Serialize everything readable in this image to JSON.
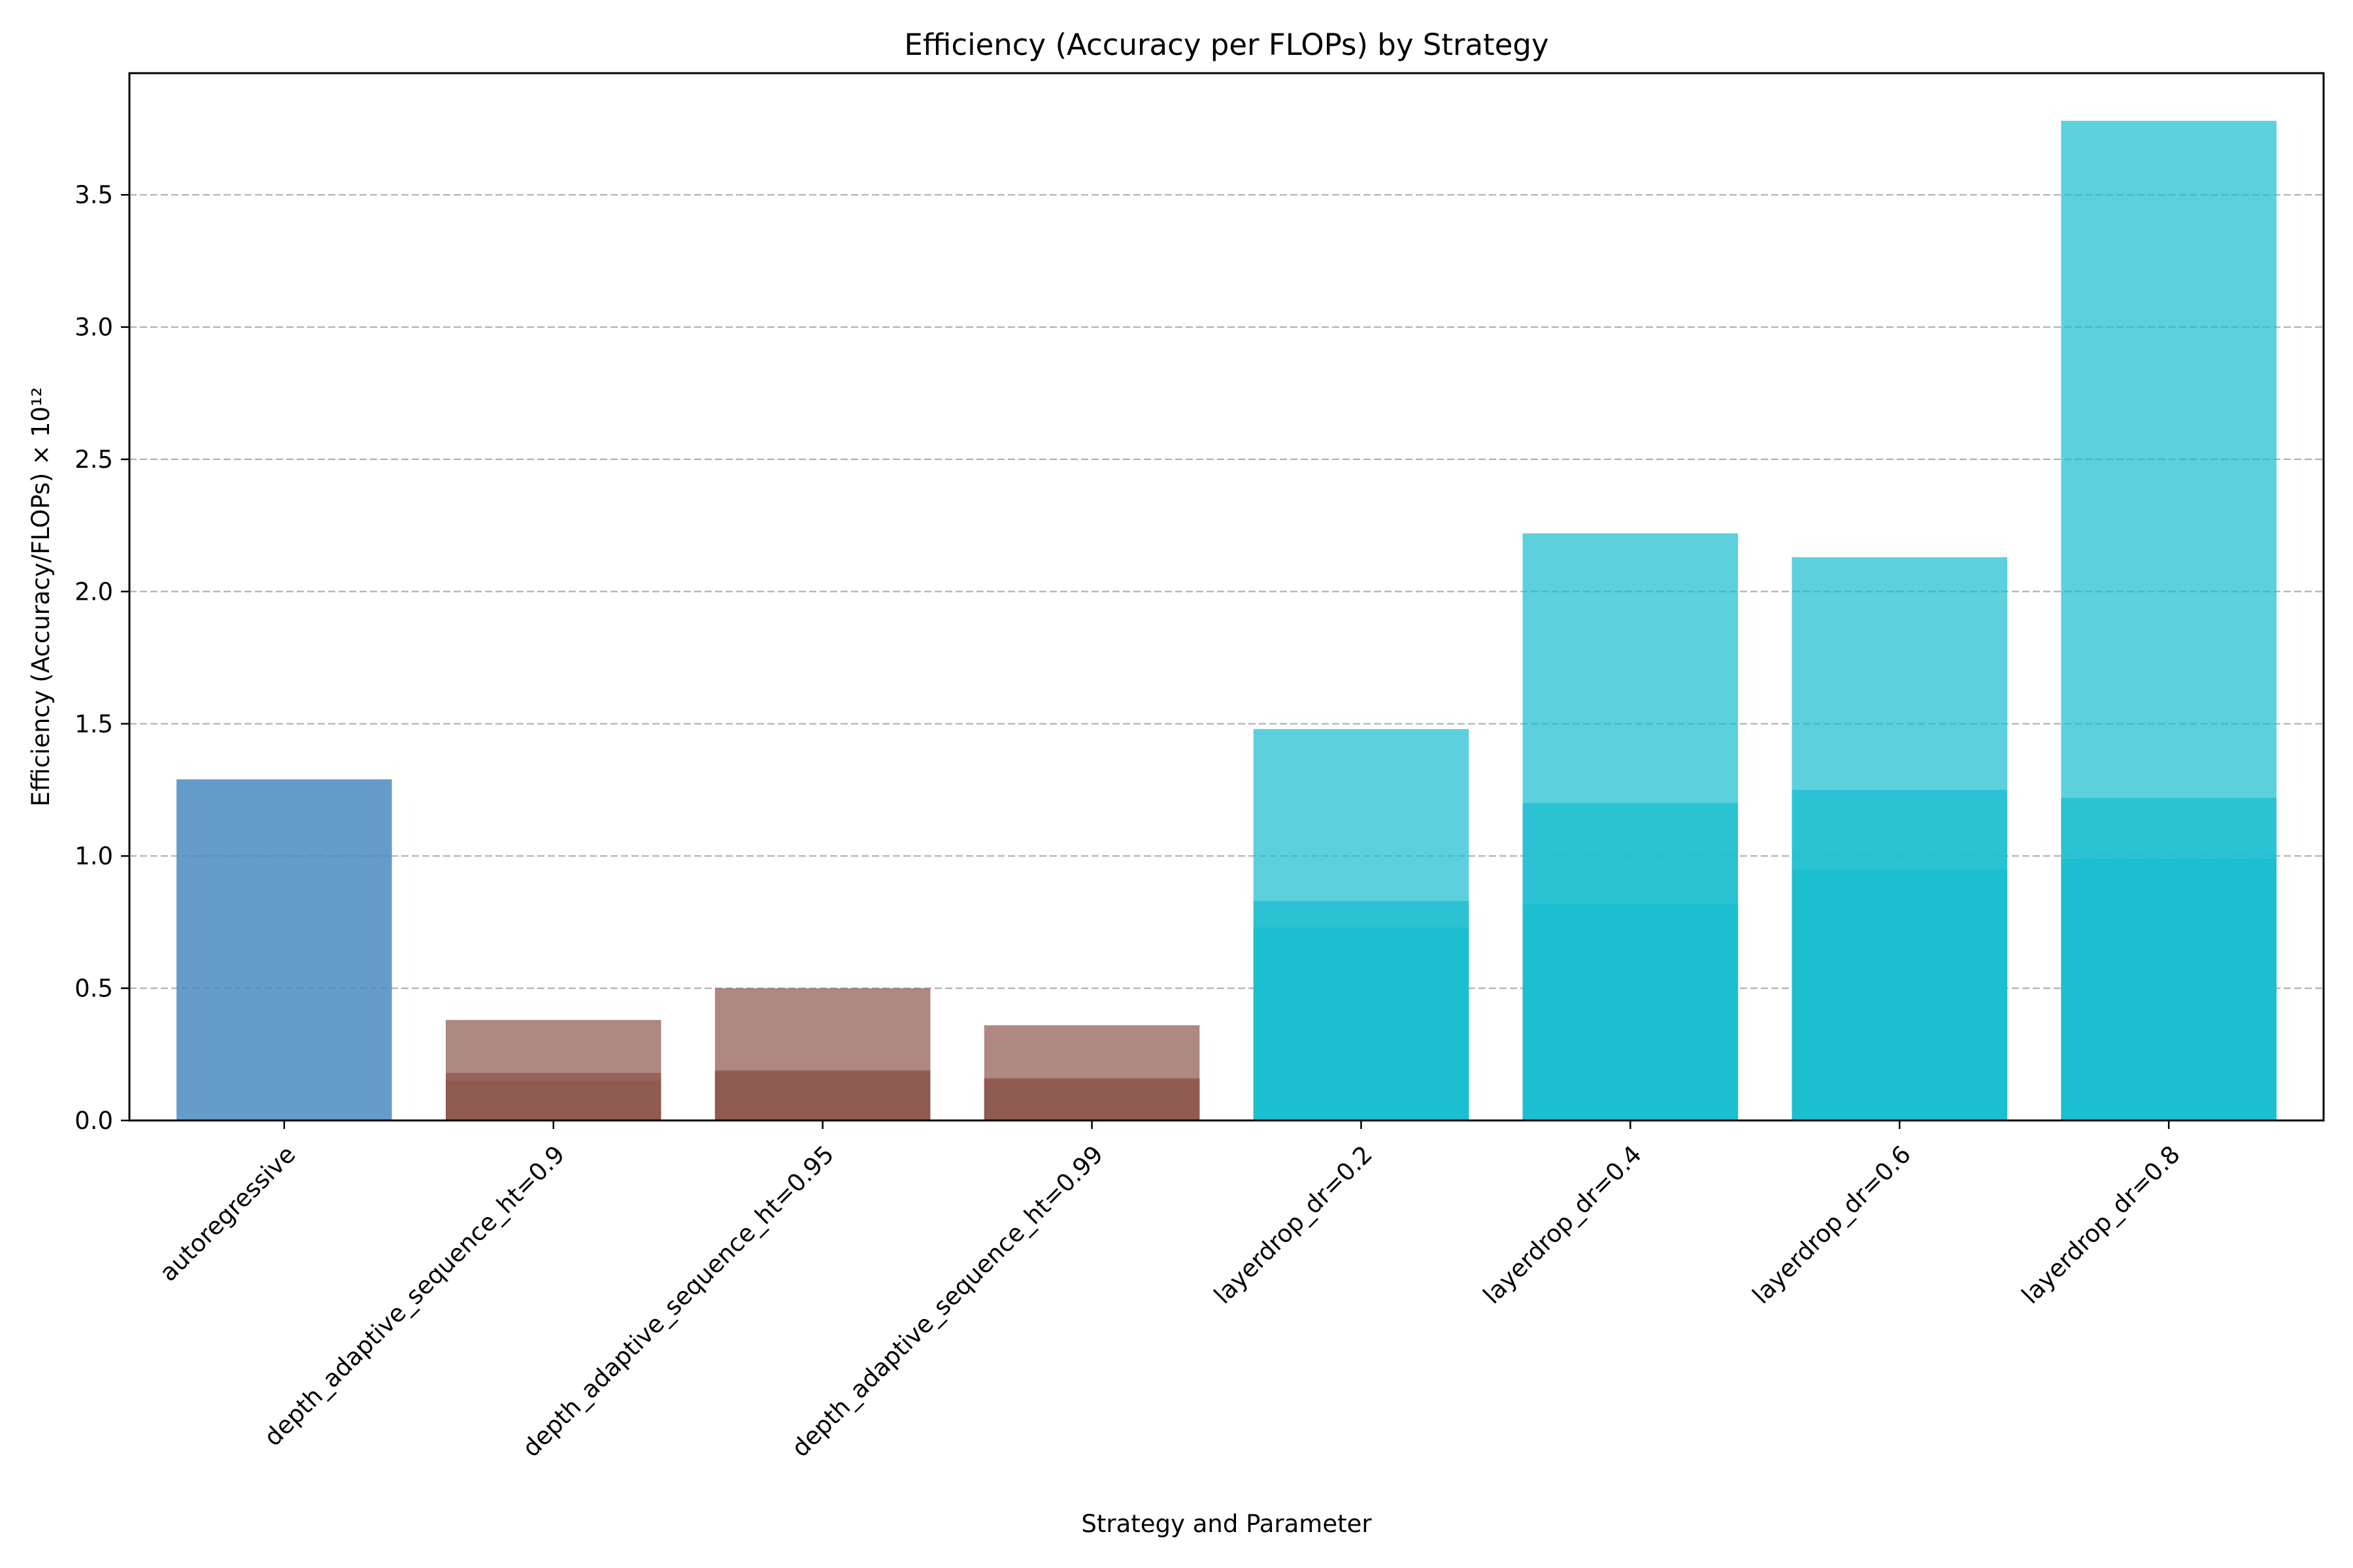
{
  "chart_data": {
    "type": "bar",
    "title": "Efficiency (Accuracy per FLOPs) by Strategy",
    "xlabel": "Strategy and Parameter",
    "ylabel": "Efficiency (Accuracy/FLOPs) × 10¹²",
    "ylim": [
      0,
      3.96
    ],
    "yticks": [
      "0.0",
      "0.5",
      "1.0",
      "1.5",
      "2.0",
      "2.5",
      "3.0",
      "3.5"
    ],
    "grid": "horizontal dashed",
    "categories": [
      "autoregressive",
      "depth_adaptive_sequence_ht=0.9",
      "depth_adaptive_sequence_ht=0.95",
      "depth_adaptive_sequence_ht=0.99",
      "layerdrop_dr=0.2",
      "layerdrop_dr=0.4",
      "layerdrop_dr=0.6",
      "layerdrop_dr=0.8"
    ],
    "bars": [
      {
        "category_index": 0,
        "value": 1.29,
        "color": "#4a8bc0",
        "opacity": 0.85
      },
      {
        "category_index": 1,
        "value": 0.38,
        "color": "#8c564b",
        "opacity": 0.7
      },
      {
        "category_index": 1,
        "value": 0.18,
        "color": "#8c564b",
        "opacity": 0.7
      },
      {
        "category_index": 1,
        "value": 0.15,
        "color": "#8c564b",
        "opacity": 0.7
      },
      {
        "category_index": 2,
        "value": 0.5,
        "color": "#8c564b",
        "opacity": 0.7
      },
      {
        "category_index": 2,
        "value": 0.19,
        "color": "#8c564b",
        "opacity": 0.7
      },
      {
        "category_index": 2,
        "value": 0.185,
        "color": "#8c564b",
        "opacity": 0.7
      },
      {
        "category_index": 3,
        "value": 0.36,
        "color": "#8c564b",
        "opacity": 0.7
      },
      {
        "category_index": 3,
        "value": 0.16,
        "color": "#8c564b",
        "opacity": 0.7
      },
      {
        "category_index": 3,
        "value": 0.155,
        "color": "#8c564b",
        "opacity": 0.7
      },
      {
        "category_index": 4,
        "value": 1.48,
        "color": "#17becf",
        "opacity": 0.7
      },
      {
        "category_index": 4,
        "value": 0.83,
        "color": "#17becf",
        "opacity": 0.7
      },
      {
        "category_index": 4,
        "value": 0.73,
        "color": "#17becf",
        "opacity": 0.7
      },
      {
        "category_index": 5,
        "value": 2.22,
        "color": "#17becf",
        "opacity": 0.7
      },
      {
        "category_index": 5,
        "value": 1.2,
        "color": "#17becf",
        "opacity": 0.7
      },
      {
        "category_index": 5,
        "value": 0.82,
        "color": "#17becf",
        "opacity": 0.7
      },
      {
        "category_index": 6,
        "value": 2.13,
        "color": "#17becf",
        "opacity": 0.7
      },
      {
        "category_index": 6,
        "value": 1.25,
        "color": "#17becf",
        "opacity": 0.7
      },
      {
        "category_index": 6,
        "value": 0.95,
        "color": "#17becf",
        "opacity": 0.7
      },
      {
        "category_index": 7,
        "value": 3.78,
        "color": "#17becf",
        "opacity": 0.7
      },
      {
        "category_index": 7,
        "value": 1.22,
        "color": "#17becf",
        "opacity": 0.7
      },
      {
        "category_index": 7,
        "value": 0.99,
        "color": "#17becf",
        "opacity": 0.7
      }
    ]
  }
}
